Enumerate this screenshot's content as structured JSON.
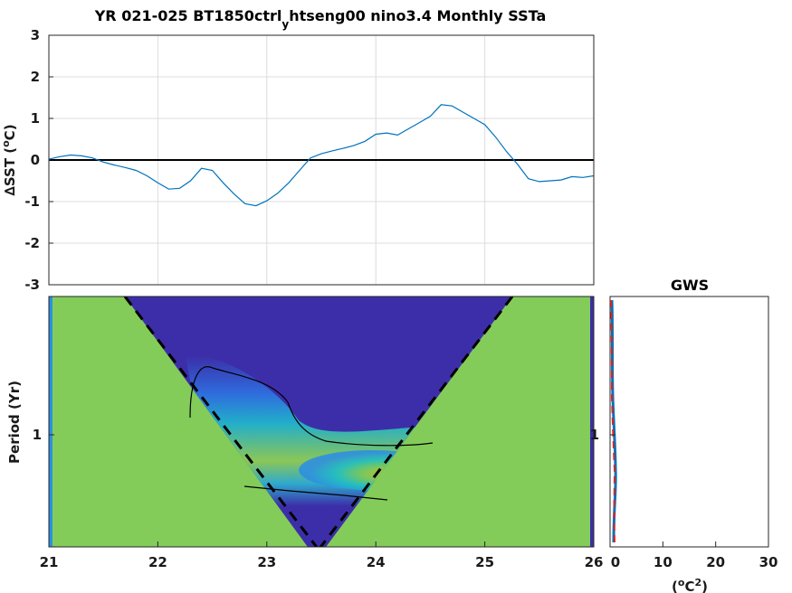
{
  "chart_data": [
    {
      "type": "line",
      "title_main": "YR 021-025 BT1850ctrl",
      "title_sub": "y",
      "title_rest": "htseng00 nino3.4 Monthly SSTa",
      "ylabel_delta": "∆",
      "ylabel_mid": "SST (",
      "ylabel_deg": "o",
      "ylabel_end": "C)",
      "xlim": [
        21,
        26
      ],
      "ylim": [
        -3,
        3
      ],
      "yticks": [
        "3",
        "2",
        "1",
        "0",
        "-1",
        "-2",
        "-3"
      ],
      "grid": true,
      "zero_line": true,
      "series": [
        {
          "color": "#0072bd",
          "x": [
            21.0,
            21.1,
            21.2,
            21.3,
            21.4,
            21.5,
            21.6,
            21.7,
            21.8,
            21.9,
            22.0,
            22.1,
            22.2,
            22.3,
            22.4,
            22.5,
            22.6,
            22.7,
            22.8,
            22.9,
            23.0,
            23.1,
            23.2,
            23.3,
            23.4,
            23.5,
            23.6,
            23.7,
            23.8,
            23.9,
            24.0,
            24.1,
            24.2,
            24.3,
            24.4,
            24.5,
            24.6,
            24.7,
            24.8,
            24.9,
            25.0,
            25.1,
            25.2,
            25.3,
            25.4,
            25.5,
            25.6,
            25.7,
            25.8,
            25.9,
            26.0
          ],
          "y": [
            0.02,
            0.08,
            0.12,
            0.1,
            0.05,
            -0.05,
            -0.12,
            -0.18,
            -0.25,
            -0.38,
            -0.55,
            -0.7,
            -0.68,
            -0.5,
            -0.2,
            -0.25,
            -0.55,
            -0.82,
            -1.05,
            -1.1,
            -0.98,
            -0.8,
            -0.55,
            -0.25,
            0.05,
            0.15,
            0.22,
            0.28,
            0.35,
            0.45,
            0.62,
            0.65,
            0.6,
            0.75,
            0.9,
            1.05,
            1.33,
            1.3,
            1.15,
            1.0,
            0.85,
            0.55,
            0.2,
            -0.1,
            -0.45,
            -0.52,
            -0.5,
            -0.48,
            -0.4,
            -0.42,
            -0.38
          ]
        }
      ]
    },
    {
      "type": "heatmap",
      "ylabel": "Period (Yr)",
      "xlim": [
        21,
        26
      ],
      "xticks": [
        "21",
        "22",
        "23",
        "24",
        "25",
        "26"
      ],
      "yticks": [
        "1"
      ],
      "colors": {
        "background": "#83cc59",
        "low": "#3c2ea8",
        "mid_low": "#2e8fe0",
        "mid": "#21c0c0",
        "mid_high": "#7ac85a",
        "high": "#c8c42a"
      },
      "cone_of_influence": "dashed"
    },
    {
      "type": "line",
      "title": "GWS",
      "xticks": [
        "0",
        "10",
        "20",
        "30"
      ],
      "xlabel_open": "(",
      "xlabel_deg": "o",
      "xlabel_unit": "C",
      "xlabel_pow": "2",
      "xlabel_close": ")",
      "xlim": [
        0,
        30
      ],
      "ytick": "1",
      "series": [
        {
          "color": "#0072bd",
          "style": "solid"
        },
        {
          "color": "#d62728",
          "style": "dashed"
        }
      ]
    }
  ]
}
